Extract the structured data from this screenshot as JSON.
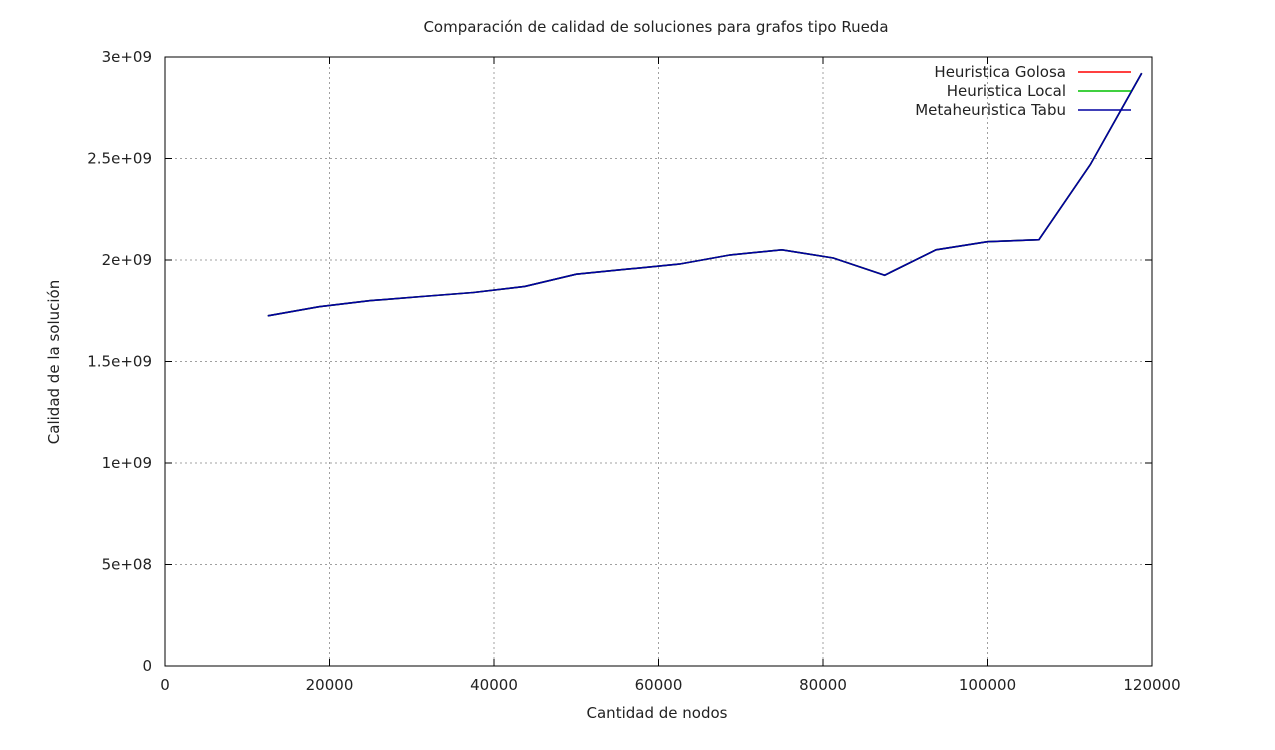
{
  "chart_data": {
    "type": "line",
    "title": "Comparación de calidad de soluciones para grafos tipo Rueda",
    "xlabel": "Cantidad de nodos",
    "ylabel": "Calidad de la solución",
    "xlim": [
      0,
      120000
    ],
    "ylim": [
      0,
      3000000000
    ],
    "x_ticks": [
      0,
      20000,
      40000,
      60000,
      80000,
      100000,
      120000
    ],
    "x_tick_labels": [
      "0",
      "20000",
      "40000",
      "60000",
      "80000",
      "100000",
      "120000"
    ],
    "y_ticks": [
      0,
      500000000,
      1000000000,
      1500000000,
      2000000000,
      2500000000,
      3000000000
    ],
    "y_tick_labels": [
      "0",
      "5e+08",
      "1e+09",
      "1.5e+09",
      "2e+09",
      "2.5e+09",
      "3e+09"
    ],
    "grid": true,
    "legend_position": "top-right",
    "x": [
      12500,
      18750,
      25000,
      31250,
      37500,
      43750,
      50000,
      56250,
      62500,
      68750,
      75000,
      81250,
      87500,
      93750,
      100000,
      106250,
      112500,
      118750
    ],
    "series": [
      {
        "name": "Heuristica Golosa",
        "color": "#ff0000",
        "values": [
          1725000000,
          1770000000,
          1800000000,
          1820000000,
          1840000000,
          1870000000,
          1930000000,
          1955000000,
          1980000000,
          2025000000,
          2050000000,
          2010000000,
          1925000000,
          2050000000,
          2090000000,
          2100000000,
          2470000000,
          2920000000
        ]
      },
      {
        "name": "Heuristica Local",
        "color": "#00c000",
        "values": [
          1725000000,
          1770000000,
          1800000000,
          1820000000,
          1840000000,
          1870000000,
          1930000000,
          1955000000,
          1980000000,
          2025000000,
          2050000000,
          2010000000,
          1925000000,
          2050000000,
          2090000000,
          2100000000,
          2470000000,
          2920000000
        ]
      },
      {
        "name": "Metaheuristica Tabu",
        "color": "#0000a0",
        "values": [
          1725000000,
          1770000000,
          1800000000,
          1820000000,
          1840000000,
          1870000000,
          1930000000,
          1955000000,
          1980000000,
          2025000000,
          2050000000,
          2010000000,
          1925000000,
          2050000000,
          2090000000,
          2100000000,
          2470000000,
          2920000000
        ]
      }
    ]
  }
}
